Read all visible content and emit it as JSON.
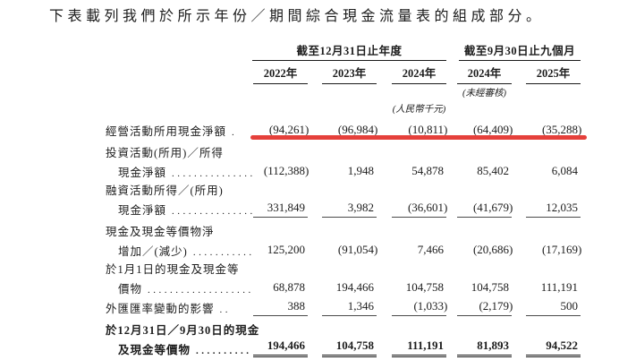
{
  "page": {
    "intro": "下表載列我們於所示年份／期間綜合現金流量表的組成部分。"
  },
  "table": {
    "col_groups": [
      {
        "label": "截至12月31日止年度",
        "span": 3
      },
      {
        "label": "截至9月30日止九個月",
        "span": 2
      }
    ],
    "columns": [
      "2022年",
      "2023年",
      "2024年",
      "2024年",
      "2025年"
    ],
    "subnotes": {
      "unaudited": "(未經審核)",
      "currency": "(人民幣千元)"
    },
    "rows": [
      {
        "label_lines": [
          "經營活動所用現金淨額"
        ],
        "values": [
          "(94,261)",
          "(96,984)",
          "(10,811)",
          "(64,409)",
          "(35,288)"
        ],
        "highlight": "red-underline"
      },
      {
        "label_lines": [
          "投資活動(所用)／所得",
          "現金淨額"
        ],
        "values": [
          "(112,388)",
          "1,948",
          "54,878",
          "85,402",
          "6,084"
        ]
      },
      {
        "label_lines": [
          "融資活動所得／(所用)",
          "現金淨額"
        ],
        "values": [
          "331,849",
          "3,982",
          "(36,601)",
          "(41,679)",
          "12,035"
        ],
        "underline": "single"
      },
      {
        "label_lines": [
          "現金及現金等價物淨",
          "增加／(減少)"
        ],
        "values": [
          "125,200",
          "(91,054)",
          "7,466",
          "(20,686)",
          "(17,169)"
        ]
      },
      {
        "label_lines": [
          "於1月1日的現金及現金等",
          "價物"
        ],
        "values": [
          "68,878",
          "194,466",
          "104,758",
          "104,758",
          "111,191"
        ]
      },
      {
        "label_lines": [
          "外匯匯率變動的影響"
        ],
        "values": [
          "388",
          "1,346",
          "(1,033)",
          "(2,179)",
          "500"
        ],
        "underline": "single"
      },
      {
        "label_lines": [
          "於12月31日／9月30日的現金",
          "及現金等價物"
        ],
        "values": [
          "194,466",
          "104,758",
          "111,191",
          "81,893",
          "94,522"
        ],
        "underline": "double",
        "bold": true
      }
    ],
    "colors": {
      "highlight_red": "#e5403b"
    }
  }
}
